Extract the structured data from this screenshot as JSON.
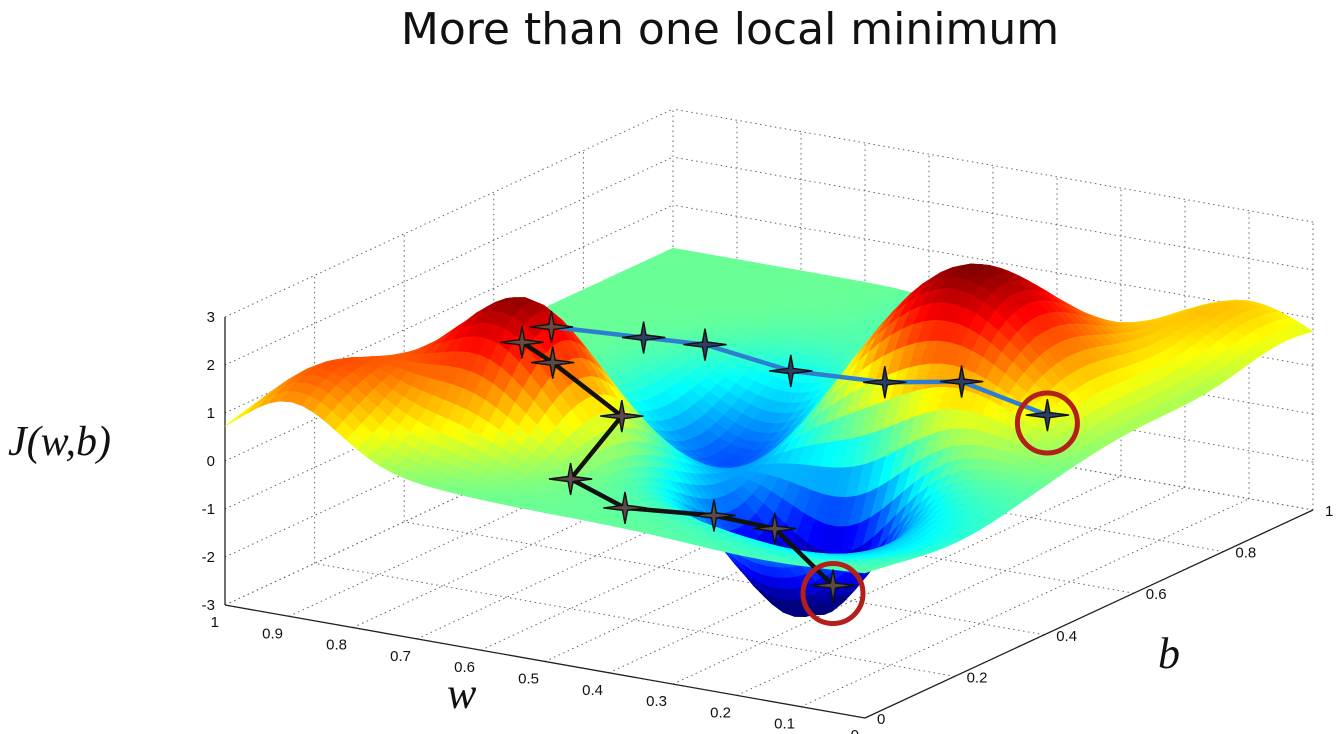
{
  "chart_data": {
    "type": "surface",
    "title": "More than one local minimum",
    "zlabel": "J(w,b)",
    "xlabel": "w",
    "ylabel": "b",
    "w_ticks": [
      "1",
      "0.9",
      "0.8",
      "0.7",
      "0.6",
      "0.5",
      "0.4",
      "0.3",
      "0.2",
      "0.1",
      "0"
    ],
    "b_ticks": [
      "0",
      "0.2",
      "0.4",
      "0.6",
      "0.8",
      "1"
    ],
    "z_ticks": [
      "3",
      "2",
      "1",
      "0",
      "-1",
      "-2",
      "-3"
    ],
    "w_range": [
      0,
      1
    ],
    "b_range": [
      0,
      1
    ],
    "z_range": [
      -3,
      3
    ],
    "grid": true,
    "colormap": "jet",
    "paths": [
      {
        "color": "#111111",
        "points": [
          {
            "w": 0.69,
            "b": 0.22,
            "J": 2.25
          },
          {
            "w": 0.67,
            "b": 0.26,
            "J": 1.7
          },
          {
            "w": 0.59,
            "b": 0.3,
            "J": 0.6
          },
          {
            "w": 0.6,
            "b": 0.2,
            "J": -0.3
          },
          {
            "w": 0.55,
            "b": 0.25,
            "J": -1.0
          },
          {
            "w": 0.46,
            "b": 0.32,
            "J": -1.25
          },
          {
            "w": 0.4,
            "b": 0.37,
            "J": -1.6
          },
          {
            "w": 0.33,
            "b": 0.4,
            "J": -2.75
          }
        ]
      },
      {
        "color": "#2f7fd0",
        "points": [
          {
            "w": 0.7,
            "b": 0.3,
            "J": 2.2
          },
          {
            "w": 0.64,
            "b": 0.42,
            "J": 1.6
          },
          {
            "w": 0.6,
            "b": 0.5,
            "J": 1.2
          },
          {
            "w": 0.55,
            "b": 0.62,
            "J": 0.25
          },
          {
            "w": 0.48,
            "b": 0.73,
            "J": -0.3
          },
          {
            "w": 0.43,
            "b": 0.83,
            "J": -0.6
          },
          {
            "w": 0.38,
            "b": 0.95,
            "J": -1.7
          }
        ]
      }
    ],
    "minima_markers": [
      {
        "w": 0.33,
        "b": 0.4,
        "J": -2.75,
        "color": "#b3201c"
      },
      {
        "w": 0.38,
        "b": 0.95,
        "J": -1.7,
        "color": "#b3201c"
      }
    ]
  }
}
